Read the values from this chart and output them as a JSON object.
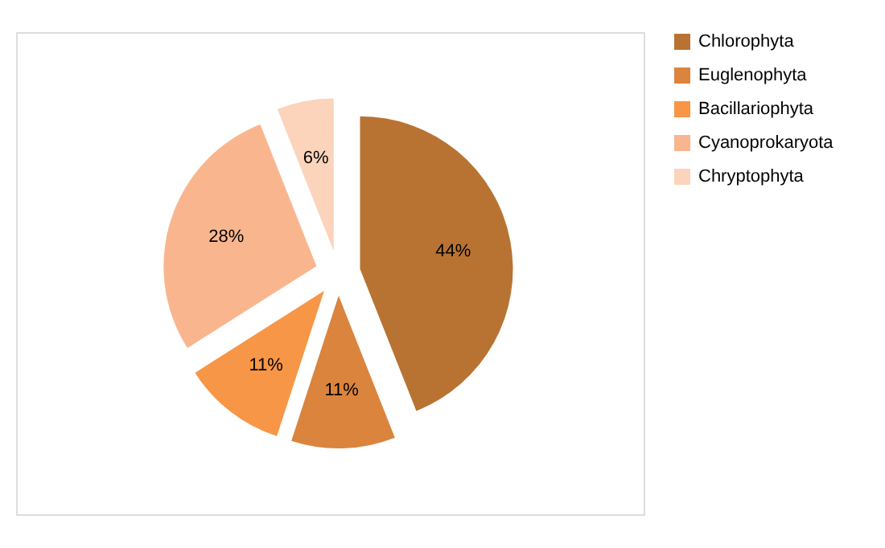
{
  "chart_data": {
    "type": "pie",
    "categories": [
      "Chlorophyta",
      "Euglenophyta",
      "Bacillariophyta",
      "Cyanoprokaryota",
      "Chryptophyta"
    ],
    "values": [
      44,
      11,
      11,
      28,
      6
    ],
    "value_labels": [
      "44%",
      "11%",
      "11%",
      "28%",
      "6%"
    ],
    "colors": [
      "#b87333",
      "#db843d",
      "#f79646",
      "#f9b68e",
      "#fcd3bb"
    ],
    "legend": "right"
  }
}
